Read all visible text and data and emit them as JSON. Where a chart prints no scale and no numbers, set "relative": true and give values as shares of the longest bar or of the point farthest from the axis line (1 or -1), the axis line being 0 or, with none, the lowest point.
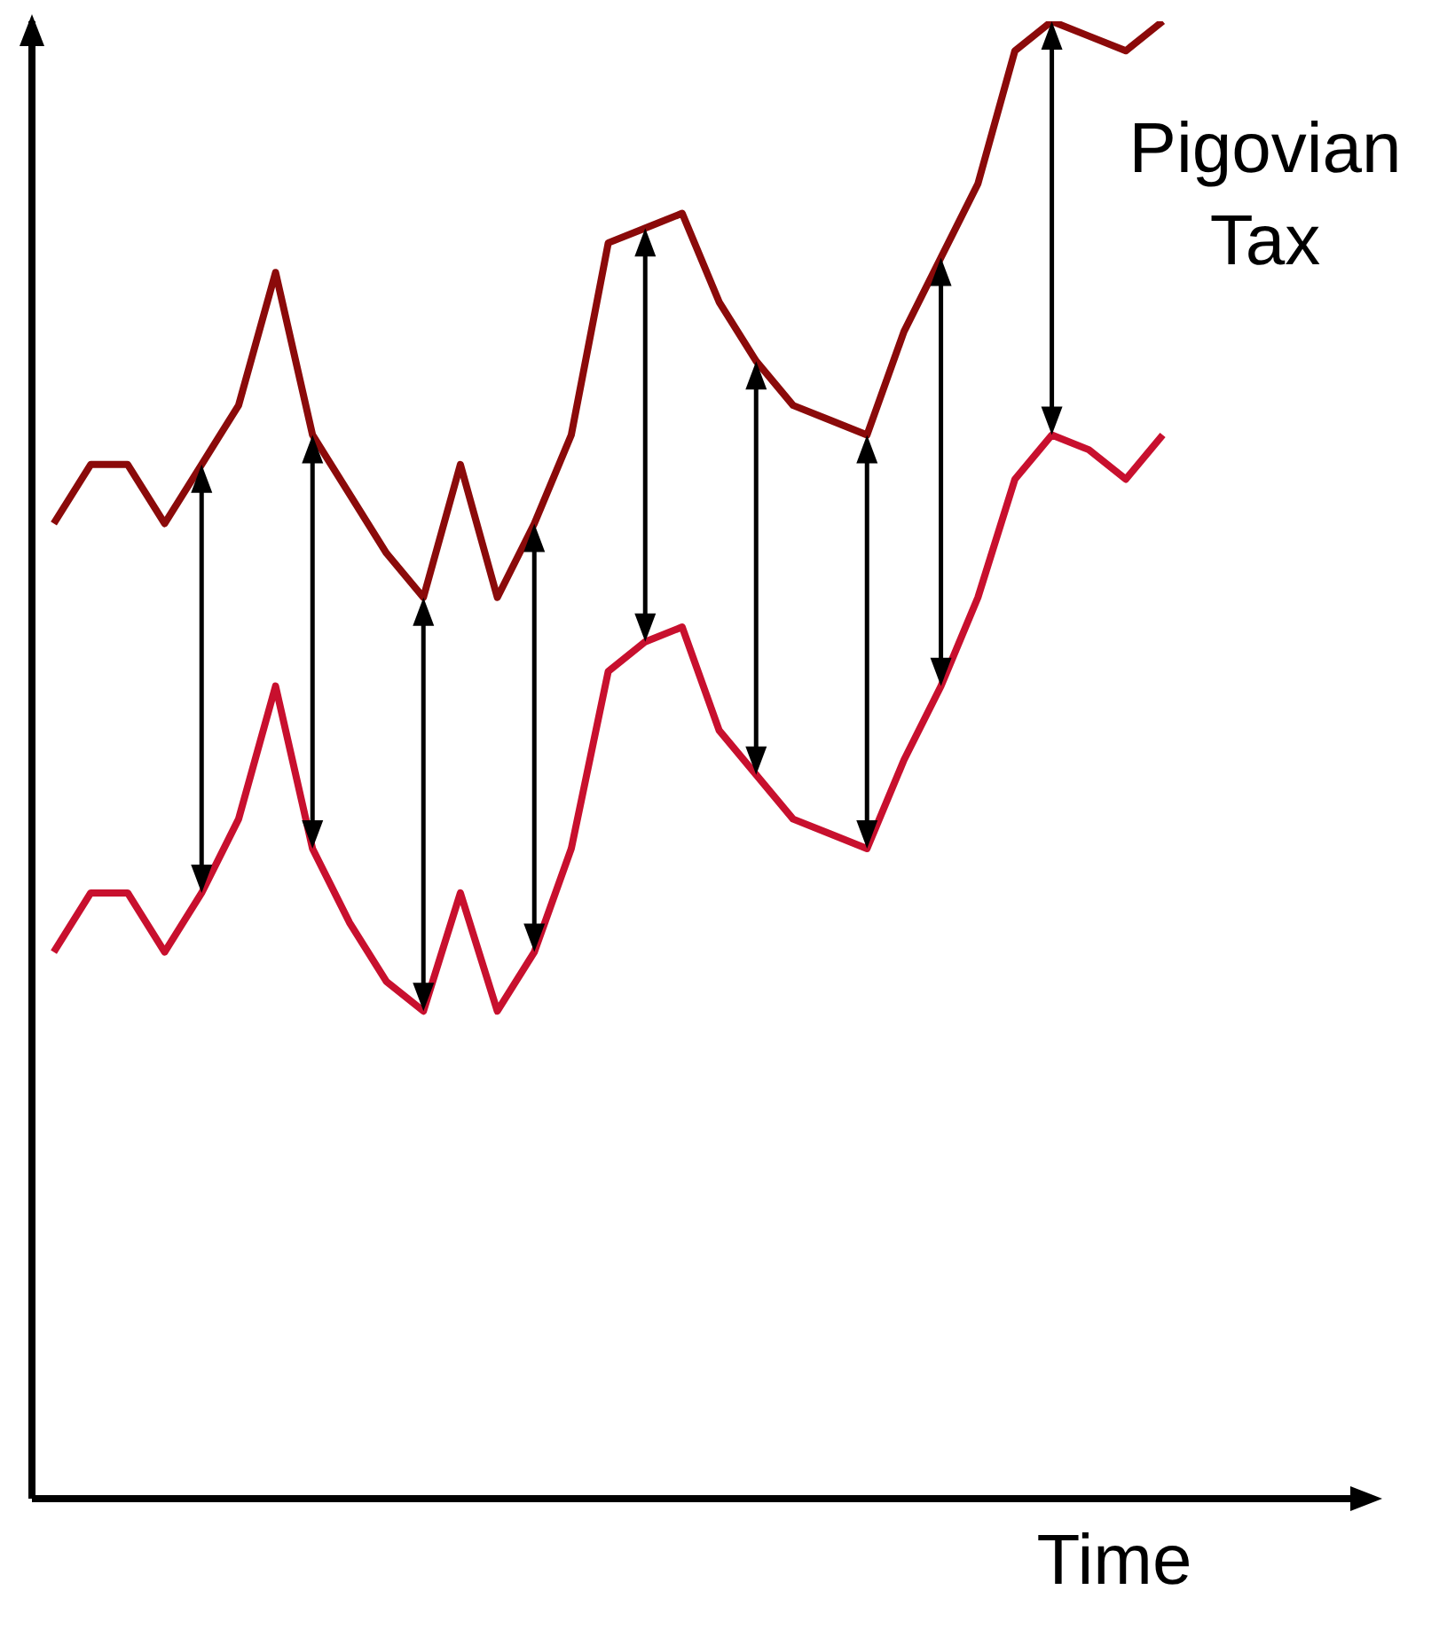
{
  "chart_data": {
    "type": "line",
    "relative": true,
    "xlabel": "Time",
    "annotations": [
      "Pigovian Tax"
    ],
    "categories": [
      null,
      null,
      null,
      null,
      null,
      null,
      null,
      null,
      null,
      null,
      null,
      null,
      null,
      null,
      null,
      null,
      null,
      null,
      null,
      null,
      null,
      null,
      null,
      null,
      null,
      null,
      null,
      null,
      null,
      null,
      null
    ],
    "series": [
      {
        "color": "#8b0a0a",
        "values": [
          0.66,
          0.7,
          0.7,
          0.66,
          0.7,
          0.74,
          0.83,
          0.72,
          0.68,
          0.64,
          0.61,
          0.7,
          0.61,
          0.66,
          0.72,
          0.85,
          0.86,
          0.87,
          0.81,
          0.77,
          0.74,
          0.73,
          0.72,
          0.79,
          0.84,
          0.89,
          0.98,
          1,
          0.99,
          0.98,
          1
        ]
      },
      {
        "color": "#c8102e",
        "values": [
          0.37,
          0.41,
          0.41,
          0.37,
          0.41,
          0.46,
          0.55,
          0.44,
          0.39,
          0.35,
          0.33,
          0.41,
          0.33,
          0.37,
          0.44,
          0.56,
          0.58,
          0.59,
          0.52,
          0.49,
          0.46,
          0.45,
          0.44,
          0.5,
          0.55,
          0.61,
          0.69,
          0.72,
          0.71,
          0.69,
          0.72
        ]
      }
    ]
  }
}
